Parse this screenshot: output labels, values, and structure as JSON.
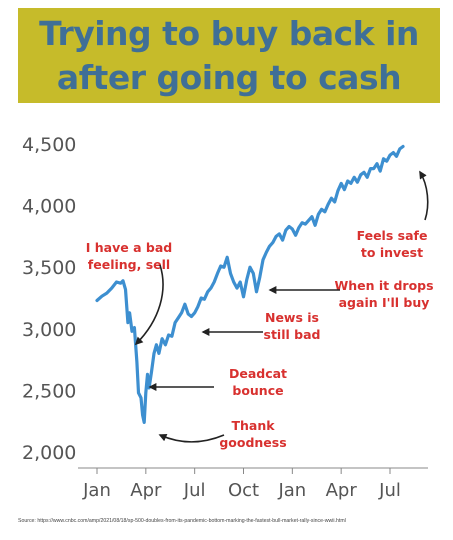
{
  "title": {
    "line1": "Trying to buy back in",
    "line2": "after going to cash"
  },
  "colors": {
    "banner": "#c6bb2a",
    "title": "#3f6f97",
    "line": "#3d8fd0",
    "annotation": "#d8312f",
    "axis_text": "#555555"
  },
  "source": "Source: https://www.cnbc.com/amp/2021/08/18/sp-500-doubles-from-its-pandemic-bottom-marking-the-fastest-bull-market-rally-since-wwii.html",
  "chart_data": {
    "type": "line",
    "title": "",
    "xlabel": "",
    "ylabel": "",
    "ylim": [
      2000,
      4500
    ],
    "xlim": [
      0,
      19
    ],
    "y_ticks": [
      2000,
      2500,
      3000,
      3500,
      4000,
      4500
    ],
    "y_tick_labels": [
      "2,000",
      "2,500",
      "3,000",
      "3,500",
      "4,000",
      "4,500"
    ],
    "x_ticks": [
      0,
      3,
      6,
      9,
      12,
      15,
      18
    ],
    "x_tick_labels": [
      "Jan",
      "Apr",
      "Jul",
      "Oct",
      "Jan",
      "Apr",
      "Jul"
    ],
    "grid": false,
    "series": [
      {
        "name": "",
        "x": [
          0,
          0.3,
          0.6,
          0.9,
          1.2,
          1.45,
          1.6,
          1.75,
          1.9,
          2.0,
          2.15,
          2.3,
          2.45,
          2.55,
          2.7,
          2.8,
          2.9,
          3.0,
          3.1,
          3.2,
          3.35,
          3.5,
          3.65,
          3.8,
          4.0,
          4.2,
          4.4,
          4.6,
          4.8,
          5.0,
          5.2,
          5.4,
          5.6,
          5.8,
          6.0,
          6.2,
          6.4,
          6.6,
          6.8,
          7.0,
          7.2,
          7.4,
          7.6,
          7.8,
          8.0,
          8.2,
          8.4,
          8.6,
          8.8,
          9.0,
          9.2,
          9.4,
          9.6,
          9.8,
          10.0,
          10.2,
          10.4,
          10.6,
          10.8,
          11.0,
          11.2,
          11.4,
          11.6,
          11.8,
          12.0,
          12.2,
          12.4,
          12.6,
          12.8,
          13.0,
          13.2,
          13.4,
          13.6,
          13.8,
          14.0,
          14.2,
          14.4,
          14.6,
          14.8,
          15.0,
          15.2,
          15.4,
          15.6,
          15.8,
          16.0,
          16.2,
          16.4,
          16.6,
          16.8,
          17.0,
          17.2,
          17.4,
          17.6,
          17.8,
          18.0,
          18.2,
          18.4,
          18.6,
          18.8
        ],
        "values": [
          3230,
          3265,
          3290,
          3330,
          3380,
          3370,
          3390,
          3320,
          3050,
          3130,
          2980,
          3010,
          2730,
          2480,
          2440,
          2300,
          2240,
          2480,
          2630,
          2520,
          2650,
          2800,
          2870,
          2800,
          2920,
          2870,
          2950,
          2940,
          3050,
          3090,
          3130,
          3200,
          3120,
          3100,
          3130,
          3180,
          3250,
          3240,
          3300,
          3330,
          3380,
          3450,
          3510,
          3500,
          3580,
          3450,
          3380,
          3330,
          3380,
          3260,
          3400,
          3500,
          3450,
          3300,
          3420,
          3560,
          3620,
          3670,
          3700,
          3750,
          3770,
          3720,
          3800,
          3830,
          3810,
          3760,
          3820,
          3860,
          3850,
          3880,
          3910,
          3840,
          3930,
          3970,
          3950,
          4010,
          4060,
          4030,
          4120,
          4180,
          4130,
          4200,
          4180,
          4230,
          4190,
          4250,
          4270,
          4230,
          4300,
          4300,
          4340,
          4280,
          4380,
          4360,
          4410,
          4430,
          4400,
          4460,
          4480
        ]
      }
    ],
    "annotations": [
      {
        "text": [
          "I have a bad",
          "feeling, sell"
        ]
      },
      {
        "text": [
          "Deadcat",
          "bounce"
        ]
      },
      {
        "text": [
          "Thank",
          "goodness"
        ]
      },
      {
        "text": [
          "News is",
          "still bad"
        ]
      },
      {
        "text": [
          "When it drops",
          "again I'll buy"
        ]
      },
      {
        "text": [
          "Feels safe",
          "to invest"
        ]
      }
    ]
  }
}
